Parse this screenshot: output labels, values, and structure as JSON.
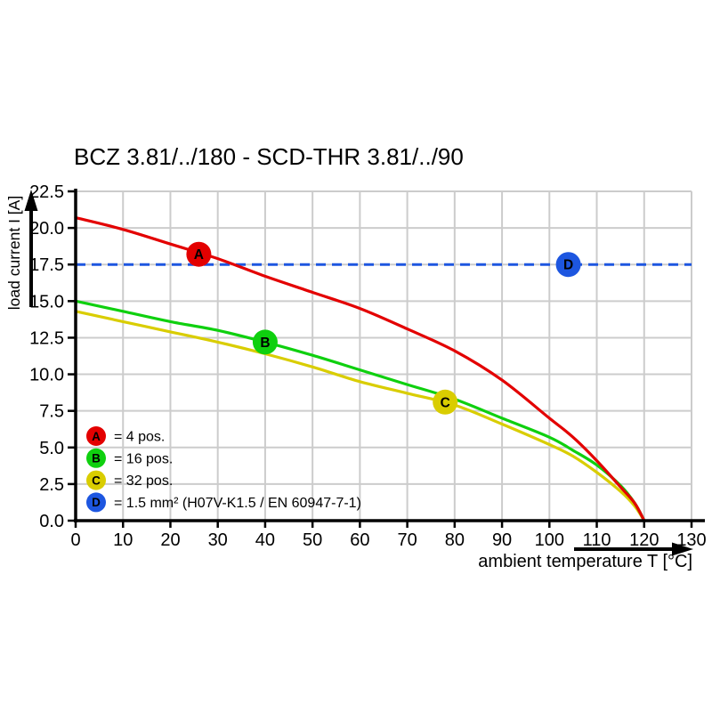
{
  "colors": {
    "background": "#ffffff",
    "axis": "#000000",
    "grid": "#cccccc",
    "series_red": "#e30000",
    "series_green": "#0fd00f",
    "series_yellow": "#d9cd00",
    "series_blue": "#1d56e0",
    "marker_letter": "#ffffff"
  },
  "chart_data": {
    "type": "line",
    "title": "BCZ 3.81/../180 - SCD-THR 3.81/../90",
    "xlabel": "ambient temperature T [°C]",
    "ylabel": "load current I [A]",
    "xlim": [
      0,
      130
    ],
    "ylim": [
      0,
      22.5
    ],
    "xticks": [
      0,
      10,
      20,
      30,
      40,
      50,
      60,
      70,
      80,
      90,
      100,
      110,
      120,
      130
    ],
    "yticks": [
      0,
      2.5,
      5,
      7.5,
      10,
      12.5,
      15,
      17.5,
      20,
      22.5
    ],
    "grid": true,
    "legend_position": "inside-bottom-left",
    "series": [
      {
        "id": "A",
        "legend_label": "= 4 pos.",
        "color": "#e30000",
        "style": "solid",
        "marker": {
          "x": 26,
          "y": 18.2
        },
        "points": [
          [
            0,
            20.7
          ],
          [
            10,
            19.9
          ],
          [
            20,
            18.9
          ],
          [
            30,
            17.9
          ],
          [
            40,
            16.7
          ],
          [
            50,
            15.6
          ],
          [
            60,
            14.5
          ],
          [
            70,
            13.1
          ],
          [
            80,
            11.6
          ],
          [
            90,
            9.6
          ],
          [
            100,
            7.0
          ],
          [
            105,
            5.7
          ],
          [
            110,
            4.1
          ],
          [
            115,
            2.3
          ],
          [
            118,
            1.2
          ],
          [
            120,
            0
          ]
        ]
      },
      {
        "id": "B",
        "legend_label": "= 16 pos.",
        "color": "#0fd00f",
        "style": "solid",
        "marker": {
          "x": 40,
          "y": 12.2
        },
        "points": [
          [
            0,
            15.0
          ],
          [
            10,
            14.3
          ],
          [
            20,
            13.6
          ],
          [
            30,
            13.0
          ],
          [
            40,
            12.2
          ],
          [
            50,
            11.3
          ],
          [
            60,
            10.3
          ],
          [
            70,
            9.3
          ],
          [
            80,
            8.3
          ],
          [
            90,
            7.0
          ],
          [
            100,
            5.7
          ],
          [
            105,
            4.8
          ],
          [
            110,
            3.8
          ],
          [
            115,
            2.4
          ],
          [
            118,
            1.2
          ],
          [
            120,
            0
          ]
        ]
      },
      {
        "id": "C",
        "legend_label": "= 32 pos.",
        "color": "#d9cd00",
        "style": "solid",
        "marker": {
          "x": 78,
          "y": 8.1
        },
        "points": [
          [
            0,
            14.3
          ],
          [
            10,
            13.6
          ],
          [
            20,
            12.9
          ],
          [
            30,
            12.2
          ],
          [
            40,
            11.4
          ],
          [
            50,
            10.5
          ],
          [
            60,
            9.5
          ],
          [
            70,
            8.7
          ],
          [
            80,
            7.9
          ],
          [
            90,
            6.6
          ],
          [
            100,
            5.2
          ],
          [
            105,
            4.4
          ],
          [
            110,
            3.3
          ],
          [
            115,
            2.0
          ],
          [
            118,
            1.0
          ],
          [
            120,
            0
          ]
        ]
      },
      {
        "id": "D",
        "legend_label": "= 1.5 mm² (H07V-K1.5 / EN 60947-7-1)",
        "color": "#1d56e0",
        "style": "dashed",
        "marker": {
          "x": 104,
          "y": 17.5
        },
        "points": [
          [
            0,
            17.5
          ],
          [
            130,
            17.5
          ]
        ]
      }
    ]
  }
}
